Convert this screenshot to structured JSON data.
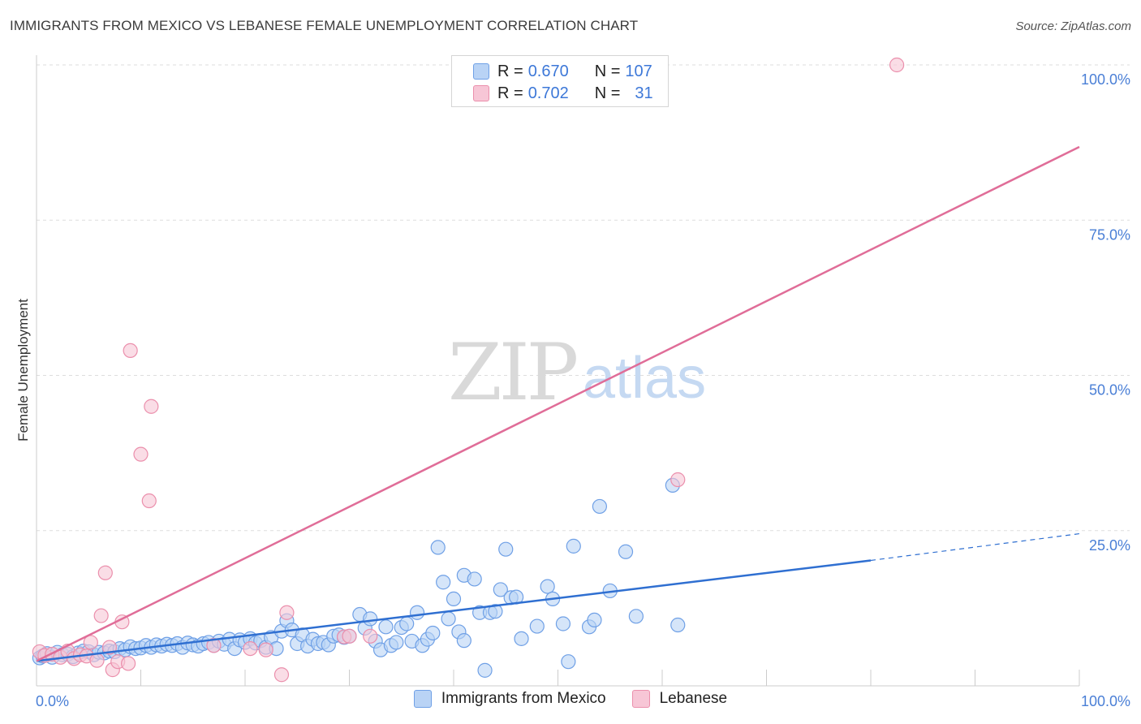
{
  "title": "IMMIGRANTS FROM MEXICO VS LEBANESE FEMALE UNEMPLOYMENT CORRELATION CHART",
  "source": "Source: ZipAtlas.com",
  "watermark": {
    "zip": "ZIP",
    "atlas": "atlas"
  },
  "colors": {
    "blue_fill": "#b9d3f5",
    "blue_stroke": "#6fa0e6",
    "blue_line": "#2f6fd1",
    "pink_fill": "#f7c6d6",
    "pink_stroke": "#eb8fac",
    "pink_line": "#e06d98",
    "grid": "#dddddd",
    "tick": "#4a7fd6"
  },
  "legend": {
    "rows": [
      {
        "r_label": "R = ",
        "r_value": "0.670",
        "n_label": "N = ",
        "n_value": "107"
      },
      {
        "r_label": "R = ",
        "r_value": "0.702",
        "n_label": "N = ",
        "n_value": "31"
      }
    ]
  },
  "chart_data": {
    "type": "scatter",
    "xlabel": "",
    "ylabel": "Female Unemployment",
    "xlim": [
      0,
      100
    ],
    "ylim": [
      0,
      100
    ],
    "x_tick_labels": [
      "0.0%",
      "100.0%"
    ],
    "y_tick_labels": [
      "100.0%",
      "75.0%",
      "50.0%",
      "25.0%"
    ],
    "y_ticks": [
      100,
      75,
      50,
      25
    ],
    "grid": true,
    "legend_position": "top-center",
    "series": [
      {
        "name": "Immigrants from Mexico",
        "color": "blue",
        "points": [
          [
            0.3,
            4.5
          ],
          [
            0.6,
            4.8
          ],
          [
            1.0,
            5.2
          ],
          [
            1.5,
            4.6
          ],
          [
            2.0,
            5.4
          ],
          [
            2.5,
            5.0
          ],
          [
            3.0,
            5.1
          ],
          [
            3.5,
            4.7
          ],
          [
            4.0,
            5.3
          ],
          [
            4.5,
            5.6
          ],
          [
            5.0,
            5.5
          ],
          [
            5.5,
            5.0
          ],
          [
            6.0,
            5.4
          ],
          [
            6.5,
            5.3
          ],
          [
            7.0,
            5.6
          ],
          [
            7.5,
            5.5
          ],
          [
            8.0,
            6.0
          ],
          [
            8.5,
            5.8
          ],
          [
            9.0,
            6.3
          ],
          [
            9.5,
            6.0
          ],
          [
            10.0,
            6.1
          ],
          [
            10.5,
            6.5
          ],
          [
            11.0,
            6.2
          ],
          [
            11.5,
            6.6
          ],
          [
            12.0,
            6.4
          ],
          [
            12.5,
            6.7
          ],
          [
            13.0,
            6.5
          ],
          [
            13.5,
            6.8
          ],
          [
            14.0,
            6.2
          ],
          [
            14.5,
            6.9
          ],
          [
            15.0,
            6.6
          ],
          [
            15.5,
            6.4
          ],
          [
            16.0,
            6.8
          ],
          [
            16.5,
            7.0
          ],
          [
            17.0,
            6.5
          ],
          [
            17.5,
            7.2
          ],
          [
            18.0,
            6.7
          ],
          [
            18.5,
            7.5
          ],
          [
            19.0,
            6.0
          ],
          [
            19.5,
            7.4
          ],
          [
            20.0,
            7.0
          ],
          [
            20.5,
            7.6
          ],
          [
            21.0,
            6.9
          ],
          [
            21.5,
            7.3
          ],
          [
            22.0,
            6.2
          ],
          [
            22.5,
            7.8
          ],
          [
            23.0,
            6.0
          ],
          [
            23.5,
            8.8
          ],
          [
            24.0,
            10.5
          ],
          [
            24.5,
            9.0
          ],
          [
            25.0,
            6.8
          ],
          [
            25.5,
            8.2
          ],
          [
            26.0,
            6.4
          ],
          [
            26.5,
            7.5
          ],
          [
            27.0,
            6.8
          ],
          [
            27.5,
            7.0
          ],
          [
            28.0,
            6.6
          ],
          [
            28.5,
            8.0
          ],
          [
            29.0,
            8.2
          ],
          [
            29.5,
            7.8
          ],
          [
            30.0,
            8.0
          ],
          [
            31.0,
            11.5
          ],
          [
            31.5,
            9.3
          ],
          [
            32.0,
            10.8
          ],
          [
            32.5,
            7.2
          ],
          [
            33.0,
            5.8
          ],
          [
            33.5,
            9.5
          ],
          [
            34.0,
            6.5
          ],
          [
            34.5,
            7.0
          ],
          [
            35.0,
            9.4
          ],
          [
            35.5,
            10.0
          ],
          [
            36.0,
            7.2
          ],
          [
            36.5,
            11.8
          ],
          [
            37.0,
            6.5
          ],
          [
            37.5,
            7.5
          ],
          [
            38.0,
            8.5
          ],
          [
            38.5,
            22.3
          ],
          [
            39.0,
            16.7
          ],
          [
            39.5,
            10.8
          ],
          [
            40.0,
            14.0
          ],
          [
            40.5,
            8.7
          ],
          [
            41.0,
            7.3
          ],
          [
            41.0,
            17.8
          ],
          [
            42.0,
            17.2
          ],
          [
            42.5,
            11.8
          ],
          [
            43.0,
            2.5
          ],
          [
            43.5,
            11.8
          ],
          [
            44.0,
            12.0
          ],
          [
            44.5,
            15.5
          ],
          [
            45.0,
            22.0
          ],
          [
            45.5,
            14.2
          ],
          [
            46.0,
            14.3
          ],
          [
            46.5,
            7.6
          ],
          [
            48.0,
            9.6
          ],
          [
            49.0,
            16.0
          ],
          [
            49.5,
            14.0
          ],
          [
            50.5,
            10.0
          ],
          [
            51.0,
            3.9
          ],
          [
            51.5,
            22.5
          ],
          [
            53.0,
            9.5
          ],
          [
            53.5,
            10.6
          ],
          [
            54.0,
            28.9
          ],
          [
            55.0,
            15.3
          ],
          [
            56.5,
            21.6
          ],
          [
            57.5,
            11.2
          ],
          [
            61.0,
            32.3
          ],
          [
            61.5,
            9.8
          ]
        ],
        "trend": {
          "x0": 0,
          "y0": 4.0,
          "x1": 80,
          "y1": 20.2,
          "dash_to_x": 100,
          "dash_to_y": 24.5
        }
      },
      {
        "name": "Lebanese",
        "color": "pink",
        "points": [
          [
            0.3,
            5.5
          ],
          [
            0.8,
            4.9
          ],
          [
            1.5,
            5.1
          ],
          [
            2.3,
            4.6
          ],
          [
            3.0,
            5.6
          ],
          [
            3.6,
            4.4
          ],
          [
            4.2,
            5.0
          ],
          [
            4.8,
            4.8
          ],
          [
            5.2,
            7.0
          ],
          [
            5.8,
            4.1
          ],
          [
            6.2,
            11.3
          ],
          [
            6.6,
            18.2
          ],
          [
            7.0,
            6.2
          ],
          [
            7.3,
            2.6
          ],
          [
            7.8,
            3.9
          ],
          [
            8.2,
            10.3
          ],
          [
            8.8,
            3.6
          ],
          [
            9.0,
            54.0
          ],
          [
            10.0,
            37.3
          ],
          [
            10.8,
            29.8
          ],
          [
            11.0,
            45.0
          ],
          [
            17.0,
            6.5
          ],
          [
            20.5,
            6.0
          ],
          [
            22.0,
            5.8
          ],
          [
            23.5,
            1.8
          ],
          [
            24.0,
            11.8
          ],
          [
            29.5,
            7.9
          ],
          [
            30.0,
            8.0
          ],
          [
            32.0,
            8.0
          ],
          [
            61.5,
            33.2
          ],
          [
            82.5,
            100.0
          ]
        ],
        "trend": {
          "x0": 0,
          "y0": 4.0,
          "x1": 100,
          "y1": 86.8
        }
      }
    ]
  }
}
